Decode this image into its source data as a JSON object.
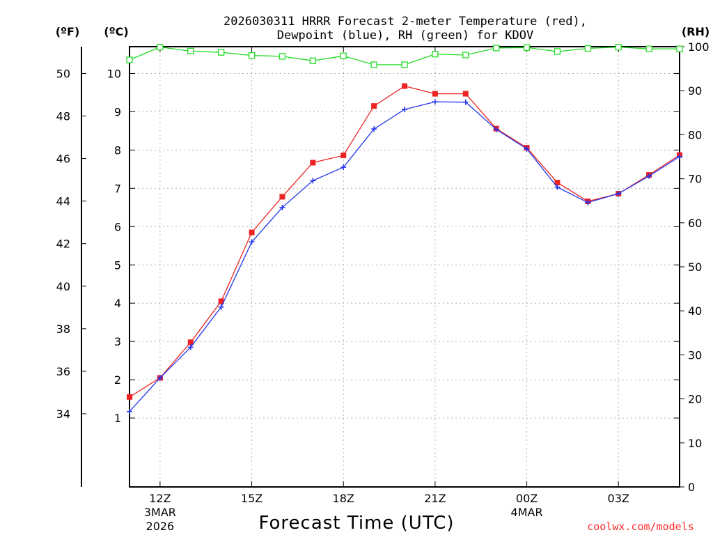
{
  "chart_data": {
    "type": "line",
    "title_line1": "2026030311 HRRR Forecast 2-meter Temperature (red),",
    "title_line2": "Dewpoint (blue), RH (green) for KDOV",
    "units": {
      "fahrenheit": "(ºF)",
      "celsius": "(ºC)",
      "rh": "(RH)"
    },
    "xlabel": "Forecast Time (UTC)",
    "credit": "coolwx.com/models",
    "x_hours": [
      11,
      12,
      13,
      14,
      15,
      16,
      17,
      18,
      19,
      20,
      21,
      22,
      23,
      24,
      25,
      26,
      27,
      28,
      29
    ],
    "xlim": [
      11,
      29
    ],
    "x_ticks": [
      {
        "hour": 12,
        "label": "12Z",
        "sub1": "3MAR",
        "sub2": "2026"
      },
      {
        "hour": 15,
        "label": "15Z",
        "sub1": "",
        "sub2": ""
      },
      {
        "hour": 18,
        "label": "18Z",
        "sub1": "",
        "sub2": ""
      },
      {
        "hour": 21,
        "label": "21Z",
        "sub1": "",
        "sub2": ""
      },
      {
        "hour": 24,
        "label": "00Z",
        "sub1": "4MAR",
        "sub2": ""
      },
      {
        "hour": 27,
        "label": "03Z",
        "sub1": "",
        "sub2": ""
      }
    ],
    "ylim_c": [
      -0.8,
      10.7
    ],
    "y_ticks_c": [
      1,
      2,
      3,
      4,
      5,
      6,
      7,
      8,
      9,
      10
    ],
    "y_ticks_f": [
      34,
      36,
      38,
      40,
      42,
      44,
      46,
      48,
      50
    ],
    "ylim_rh": [
      0,
      100
    ],
    "y_ticks_rh": [
      0,
      10,
      20,
      30,
      40,
      50,
      60,
      70,
      80,
      90,
      100
    ],
    "series": [
      {
        "name": "Temperature",
        "color": "#ee2222",
        "marker": "square-filled",
        "axis": "C",
        "values": [
          1.55,
          2.05,
          2.98,
          4.05,
          5.85,
          6.78,
          7.67,
          7.86,
          9.15,
          9.67,
          9.47,
          9.47,
          8.56,
          8.06,
          7.15,
          6.66,
          6.86,
          7.35,
          7.87
        ]
      },
      {
        "name": "Dewpoint",
        "color": "#2233ee",
        "marker": "plus",
        "axis": "C",
        "values": [
          1.17,
          2.05,
          2.85,
          3.9,
          5.6,
          6.5,
          7.2,
          7.55,
          8.55,
          9.06,
          9.26,
          9.25,
          8.54,
          8.03,
          7.03,
          6.63,
          6.86,
          7.32,
          7.83
        ]
      },
      {
        "name": "RH",
        "color": "#22dd22",
        "marker": "square-open",
        "axis": "RH",
        "values": [
          97,
          99.9,
          99,
          98.7,
          98,
          97.8,
          96.8,
          97.9,
          95.9,
          95.9,
          98.3,
          98.1,
          99.7,
          99.8,
          98.9,
          99.6,
          99.9,
          99.5,
          99.5
        ]
      }
    ]
  }
}
